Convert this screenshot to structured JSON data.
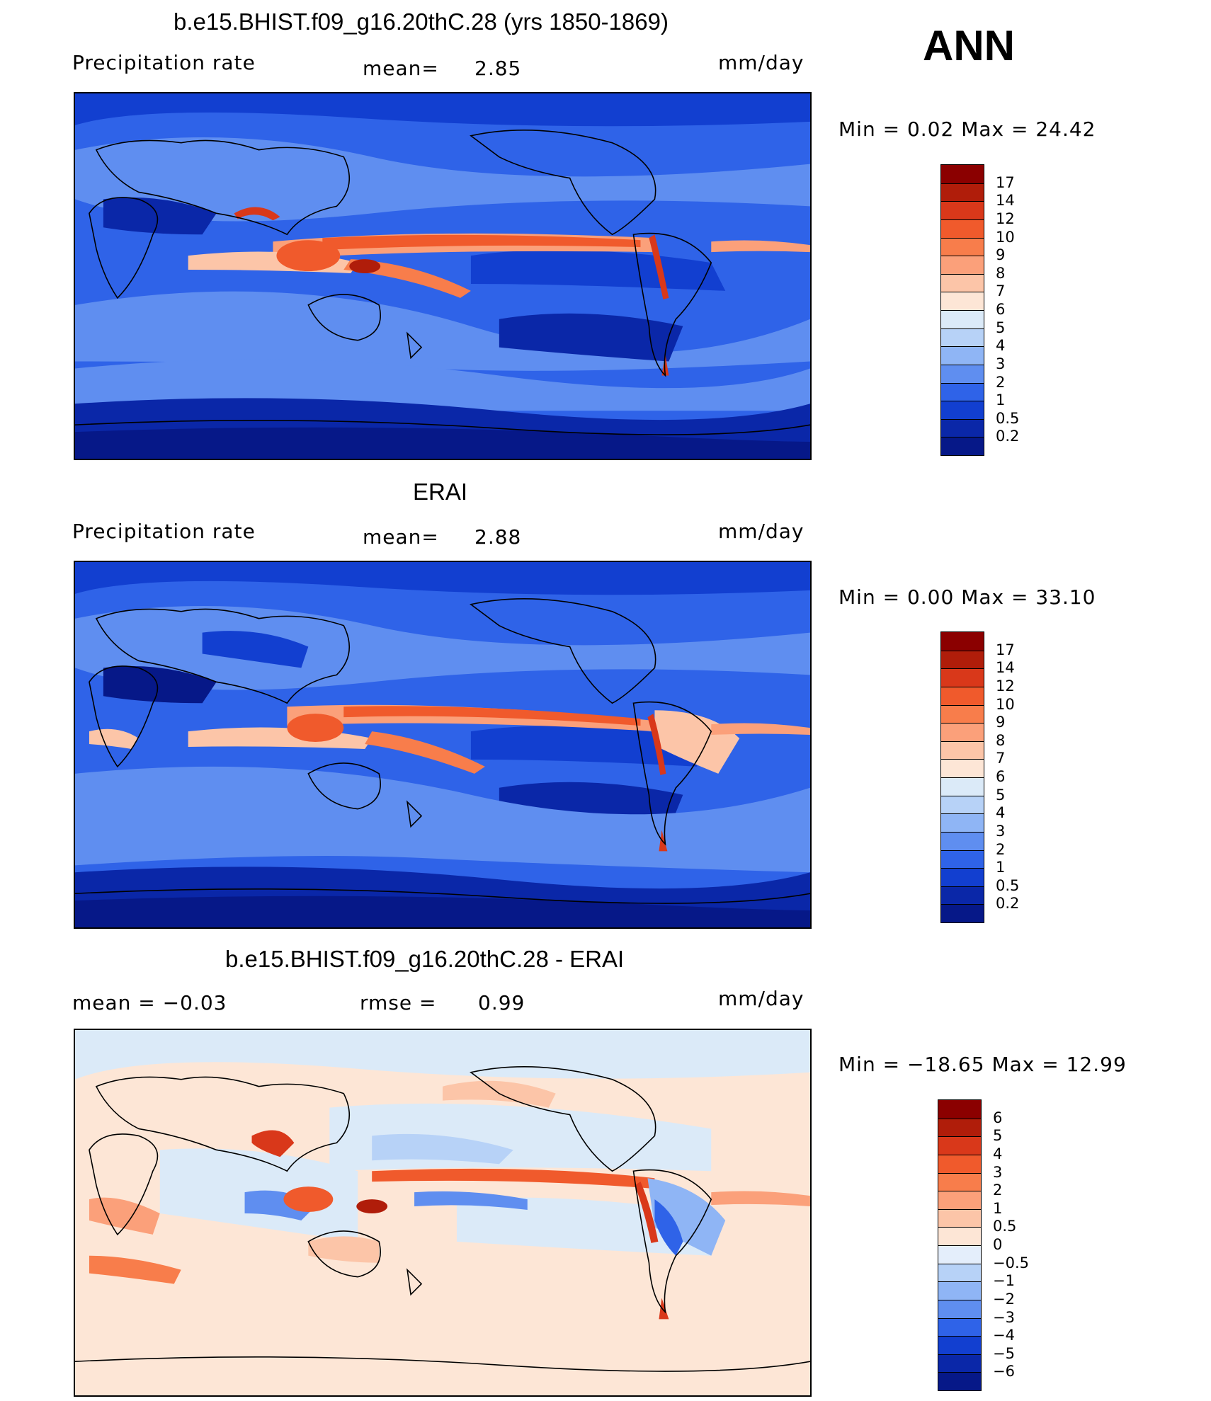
{
  "season": "ANN",
  "panels": [
    {
      "title": "b.e15.BHIST.f09_g16.20thC.28 (yrs 1850-1869)",
      "left_label": "Precipitation  rate",
      "center_label": "mean=",
      "center_value": "2.85",
      "units": "mm/day",
      "minmax_text": "Min  =      0.02  Max  =     24.42",
      "colorbar_labels": [
        "17",
        "14",
        "12",
        "10",
        "9",
        "8",
        "7",
        "6",
        "5",
        "4",
        "3",
        "2",
        "1",
        "0.5",
        "0.2"
      ],
      "colorbar_colors": [
        "#8b0000",
        "#b01d0a",
        "#d9381a",
        "#f05a2c",
        "#f87d4b",
        "#fba07a",
        "#fcc5a8",
        "#fde6d6",
        "#dbeaf8",
        "#b7d2f7",
        "#8fb5f5",
        "#5f8ef0",
        "#2f63e8",
        "#123fd0",
        "#0a27a8",
        "#061888"
      ]
    },
    {
      "title": "ERAI",
      "left_label": "Precipitation  rate",
      "center_label": "mean=",
      "center_value": "2.88",
      "units": "mm/day",
      "minmax_text": "Min  =      0.00  Max  =     33.10",
      "colorbar_labels": [
        "17",
        "14",
        "12",
        "10",
        "9",
        "8",
        "7",
        "6",
        "5",
        "4",
        "3",
        "2",
        "1",
        "0.5",
        "0.2"
      ],
      "colorbar_colors": [
        "#8b0000",
        "#b01d0a",
        "#d9381a",
        "#f05a2c",
        "#f87d4b",
        "#fba07a",
        "#fcc5a8",
        "#fde6d6",
        "#dbeaf8",
        "#b7d2f7",
        "#8fb5f5",
        "#5f8ef0",
        "#2f63e8",
        "#123fd0",
        "#0a27a8",
        "#061888"
      ]
    },
    {
      "title": "b.e15.BHIST.f09_g16.20thC.28 - ERAI",
      "left_label": "mean  =     −0.03",
      "center_label": "rmse  =",
      "center_value": "0.99",
      "units": "mm/day",
      "minmax_text": "Min  = −18.65  Max  =     12.99",
      "colorbar_labels": [
        "6",
        "5",
        "4",
        "3",
        "2",
        "1",
        "0.5",
        "0",
        "−0.5",
        "−1",
        "−2",
        "−3",
        "−4",
        "−5",
        "−6"
      ],
      "colorbar_colors": [
        "#8b0000",
        "#b01d0a",
        "#d9381a",
        "#f05a2c",
        "#f87d4b",
        "#fba07a",
        "#fcc5a8",
        "#fde6d6",
        "#e4eefb",
        "#b7d2f7",
        "#8fb5f5",
        "#5f8ef0",
        "#2f63e8",
        "#123fd0",
        "#0a27a8",
        "#061888"
      ]
    }
  ],
  "palette": {
    "ocean_low": "#0a27a8",
    "ocean_mid": "#2f63e8",
    "tropics": "#f05a2c",
    "diff_neutral": "#fde6d6",
    "diff_neg": "#dbeaf8"
  }
}
